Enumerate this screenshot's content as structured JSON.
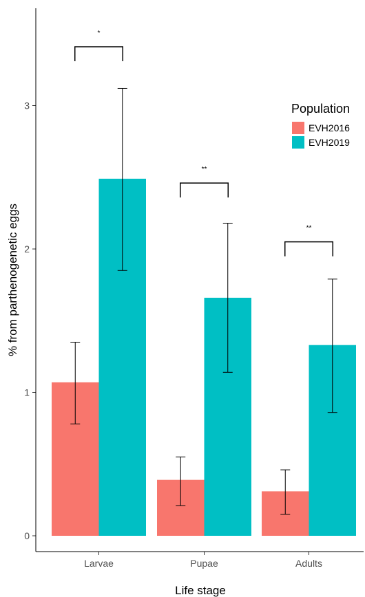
{
  "chart_data": {
    "type": "bar",
    "title": "",
    "xlabel": "Life stage",
    "ylabel": "% from parthenogenetic eggs",
    "categories": [
      "Larvae",
      "Pupae",
      "Adults"
    ],
    "ylim": [
      0,
      3.6
    ],
    "yticks": [
      0,
      1,
      2,
      3
    ],
    "grid": false,
    "legend": {
      "title": "Population",
      "position": "right"
    },
    "series": [
      {
        "name": "EVH2016",
        "color": "#F8766D",
        "values": [
          1.07,
          0.39,
          0.31
        ],
        "error_low": [
          0.78,
          0.21,
          0.15
        ],
        "error_high": [
          1.35,
          0.55,
          0.46
        ]
      },
      {
        "name": "EVH2019",
        "color": "#00BFC4",
        "values": [
          2.49,
          1.66,
          1.33
        ],
        "error_low": [
          1.85,
          1.14,
          0.86
        ],
        "error_high": [
          3.12,
          2.18,
          1.79
        ]
      }
    ],
    "annotations": [
      {
        "category": "Larvae",
        "text": "*",
        "y": 3.41
      },
      {
        "category": "Pupae",
        "text": "**",
        "y": 2.46
      },
      {
        "category": "Adults",
        "text": "**",
        "y": 2.05
      }
    ]
  }
}
